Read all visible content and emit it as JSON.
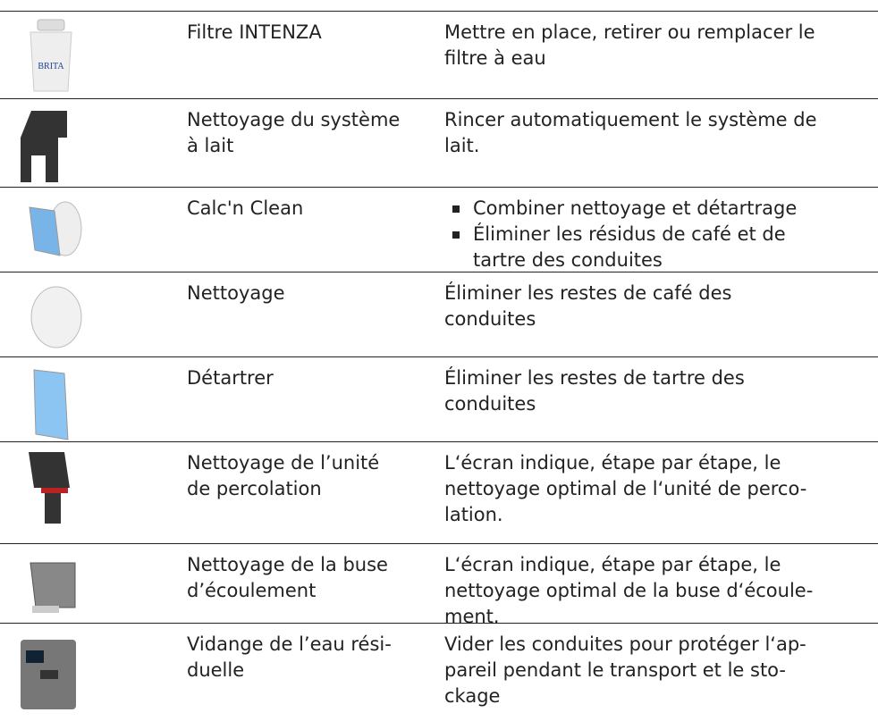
{
  "table": {
    "rows": [
      {
        "icon_label": "BRITA",
        "name": [
          "Filtre INTENZA"
        ],
        "description": [
          "Mettre en place, retirer ou remplacer le",
          "filtre à eau"
        ]
      },
      {
        "name": [
          "Nettoyage du système",
          "à lait"
        ],
        "description": [
          "Rincer automatiquement le système de",
          "lait."
        ]
      },
      {
        "name": [
          "Calc'n Clean"
        ],
        "bullets": [
          [
            "Combiner nettoyage et détartrage"
          ],
          [
            "Éliminer les résidus de café et de",
            "tartre des conduites"
          ]
        ]
      },
      {
        "name": [
          "Nettoyage"
        ],
        "description": [
          "Éliminer les restes de café des",
          "conduites"
        ]
      },
      {
        "name": [
          "Détartrer"
        ],
        "description": [
          "Éliminer les restes de tartre des",
          "conduites"
        ]
      },
      {
        "name": [
          "Nettoyage de l’unité",
          "de percolation"
        ],
        "description": [
          "L‘écran indique, étape par étape, le",
          "nettoyage optimal de l‘unité de perco-",
          "lation."
        ]
      },
      {
        "name": [
          "Nettoyage de la buse",
          "d’écoulement"
        ],
        "description": [
          "L‘écran indique, étape par étape, le",
          "nettoyage optimal de la buse d‘écoule-",
          "ment."
        ]
      },
      {
        "name": [
          "Vidange de l’eau rési-",
          "duelle"
        ],
        "description": [
          "Vider les conduites pour protéger l‘ap-",
          "pareil pendant le transport et le sto-",
          "ckage"
        ]
      }
    ]
  }
}
